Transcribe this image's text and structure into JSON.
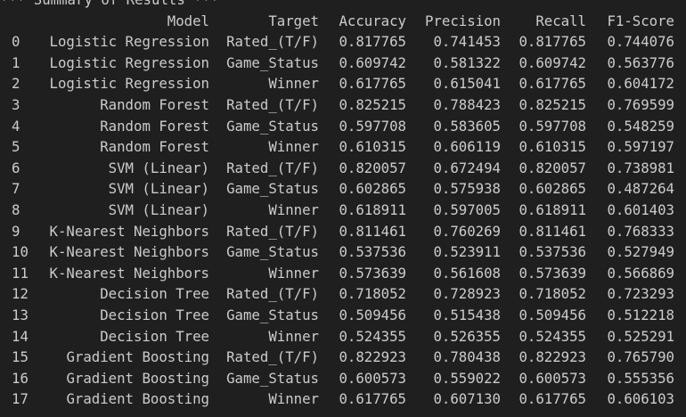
{
  "title": "*** Summary of Results ***",
  "columns": {
    "index": "",
    "model": "Model",
    "target": "Target",
    "accuracy": "Accuracy",
    "precision": "Precision",
    "recall": "Recall",
    "f1": "F1-Score"
  },
  "rows": [
    {
      "index": "0",
      "model": "Logistic Regression",
      "target": "Rated_(T/F)",
      "accuracy": "0.817765",
      "precision": "0.741453",
      "recall": "0.817765",
      "f1": "0.744076"
    },
    {
      "index": "1",
      "model": "Logistic Regression",
      "target": "Game_Status",
      "accuracy": "0.609742",
      "precision": "0.581322",
      "recall": "0.609742",
      "f1": "0.563776"
    },
    {
      "index": "2",
      "model": "Logistic Regression",
      "target": "Winner",
      "accuracy": "0.617765",
      "precision": "0.615041",
      "recall": "0.617765",
      "f1": "0.604172"
    },
    {
      "index": "3",
      "model": "Random Forest",
      "target": "Rated_(T/F)",
      "accuracy": "0.825215",
      "precision": "0.788423",
      "recall": "0.825215",
      "f1": "0.769599"
    },
    {
      "index": "4",
      "model": "Random Forest",
      "target": "Game_Status",
      "accuracy": "0.597708",
      "precision": "0.583605",
      "recall": "0.597708",
      "f1": "0.548259"
    },
    {
      "index": "5",
      "model": "Random Forest",
      "target": "Winner",
      "accuracy": "0.610315",
      "precision": "0.606119",
      "recall": "0.610315",
      "f1": "0.597197"
    },
    {
      "index": "6",
      "model": "SVM (Linear)",
      "target": "Rated_(T/F)",
      "accuracy": "0.820057",
      "precision": "0.672494",
      "recall": "0.820057",
      "f1": "0.738981"
    },
    {
      "index": "7",
      "model": "SVM (Linear)",
      "target": "Game_Status",
      "accuracy": "0.602865",
      "precision": "0.575938",
      "recall": "0.602865",
      "f1": "0.487264"
    },
    {
      "index": "8",
      "model": "SVM (Linear)",
      "target": "Winner",
      "accuracy": "0.618911",
      "precision": "0.597005",
      "recall": "0.618911",
      "f1": "0.601403"
    },
    {
      "index": "9",
      "model": "K-Nearest Neighbors",
      "target": "Rated_(T/F)",
      "accuracy": "0.811461",
      "precision": "0.760269",
      "recall": "0.811461",
      "f1": "0.768333"
    },
    {
      "index": "10",
      "model": "K-Nearest Neighbors",
      "target": "Game_Status",
      "accuracy": "0.537536",
      "precision": "0.523911",
      "recall": "0.537536",
      "f1": "0.527949"
    },
    {
      "index": "11",
      "model": "K-Nearest Neighbors",
      "target": "Winner",
      "accuracy": "0.573639",
      "precision": "0.561608",
      "recall": "0.573639",
      "f1": "0.566869"
    },
    {
      "index": "12",
      "model": "Decision Tree",
      "target": "Rated_(T/F)",
      "accuracy": "0.718052",
      "precision": "0.728923",
      "recall": "0.718052",
      "f1": "0.723293"
    },
    {
      "index": "13",
      "model": "Decision Tree",
      "target": "Game_Status",
      "accuracy": "0.509456",
      "precision": "0.515438",
      "recall": "0.509456",
      "f1": "0.512218"
    },
    {
      "index": "14",
      "model": "Decision Tree",
      "target": "Winner",
      "accuracy": "0.524355",
      "precision": "0.526355",
      "recall": "0.524355",
      "f1": "0.525291"
    },
    {
      "index": "15",
      "model": "Gradient Boosting",
      "target": "Rated_(T/F)",
      "accuracy": "0.822923",
      "precision": "0.780438",
      "recall": "0.822923",
      "f1": "0.765790"
    },
    {
      "index": "16",
      "model": "Gradient Boosting",
      "target": "Game_Status",
      "accuracy": "0.600573",
      "precision": "0.559022",
      "recall": "0.600573",
      "f1": "0.555356"
    },
    {
      "index": "17",
      "model": "Gradient Boosting",
      "target": "Winner",
      "accuracy": "0.617765",
      "precision": "0.607130",
      "recall": "0.617765",
      "f1": "0.606103"
    }
  ],
  "colors": {
    "background": "#1f1f1f",
    "text": "#cccccc"
  }
}
